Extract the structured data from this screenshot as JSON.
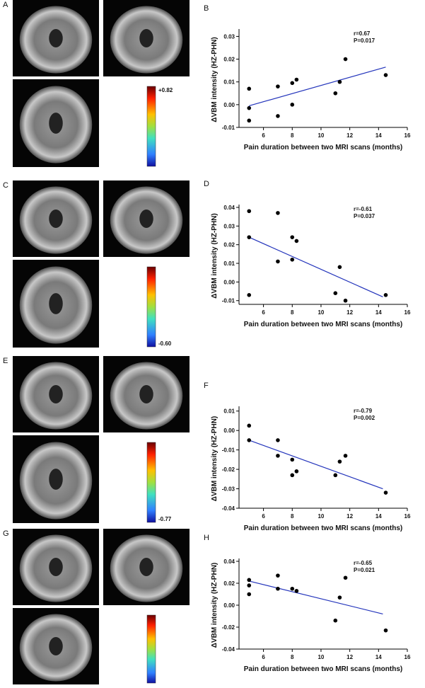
{
  "brain_panels": [
    {
      "label": "A",
      "colorbar_label": "+0.82"
    },
    {
      "label": "C",
      "colorbar_label": "-0.60"
    },
    {
      "label": "E",
      "colorbar_label": "-0.77"
    },
    {
      "label": "G"
    }
  ],
  "chart_data": [
    {
      "type": "scatter",
      "panel": "B",
      "x_label": "Pain duration between two MRI scans (months)",
      "y_label": "ΔVBM intensity (HZ-PHN)",
      "annotations": [
        "r=0.67",
        "P=0.017"
      ],
      "x": [
        5,
        5,
        5,
        7,
        7,
        8,
        8,
        8.3,
        11,
        11.3,
        11.7,
        14.5
      ],
      "y": [
        0.007,
        -0.0015,
        -0.007,
        0.008,
        -0.005,
        0.0095,
        0,
        0.011,
        0.005,
        0.01,
        0.02,
        0.013
      ],
      "color": "#000000",
      "fit_line": {
        "x": [
          5,
          14.5
        ],
        "y": [
          -0.0005,
          0.0165
        ],
        "color": "#2233bb"
      },
      "xlim": [
        4.3,
        16
      ],
      "xticks": [
        6,
        8,
        10,
        12,
        14,
        16
      ],
      "ylim": [
        -0.01,
        0.032
      ],
      "yticks": [
        -0.01,
        {
          "value": 0,
          "label": "0.00"
        },
        0.01,
        0.02,
        0.03
      ]
    },
    {
      "type": "scatter",
      "panel": "D",
      "x_label": "Pain duration between two MRI scans (months)",
      "y_label": "ΔVBM intensity (HZ-PHN)",
      "annotations": [
        "r=-0.61",
        "P=0.037"
      ],
      "x": [
        5,
        5,
        5,
        7,
        7,
        8,
        8,
        8.3,
        11,
        11.3,
        11.7,
        14.5
      ],
      "y": [
        0.038,
        0.024,
        -0.007,
        0.037,
        0.011,
        0.024,
        0.012,
        0.022,
        -0.006,
        0.008,
        -0.01,
        -0.007
      ],
      "color": "#000000",
      "fit_line": {
        "x": [
          5,
          14.3
        ],
        "y": [
          0.024,
          -0.008
        ],
        "color": "#2233bb"
      },
      "xlim": [
        4.3,
        16
      ],
      "xticks": [
        6,
        8,
        10,
        12,
        14,
        16
      ],
      "ylim": [
        -0.012,
        0.04
      ],
      "yticks": [
        -0.01,
        {
          "value": 0,
          "label": "0.00"
        },
        0.01,
        0.02,
        0.03,
        0.04
      ]
    },
    {
      "type": "scatter",
      "panel": "F",
      "x_label": "Pain duration between two MRI scans (months)",
      "y_label": "ΔVBM intensity (HZ-PHN)",
      "annotations": [
        "r=-0.79",
        "P=0.002"
      ],
      "x": [
        5,
        5,
        7,
        7,
        8,
        8,
        8.3,
        11,
        11.3,
        11.7,
        14.5
      ],
      "y": [
        0.0025,
        -0.005,
        -0.005,
        -0.013,
        -0.015,
        -0.023,
        -0.021,
        -0.023,
        -0.016,
        -0.013,
        -0.032
      ],
      "color": "#000000",
      "fit_line": {
        "x": [
          5,
          14.3
        ],
        "y": [
          -0.005,
          -0.03
        ],
        "color": "#2233bb"
      },
      "xlim": [
        4.3,
        16
      ],
      "xticks": [
        6,
        8,
        10,
        12,
        14,
        16
      ],
      "ylim": [
        -0.04,
        0.011
      ],
      "yticks": [
        -0.04,
        -0.03,
        -0.02,
        -0.01,
        {
          "value": 0,
          "label": "0.00"
        },
        0.01
      ]
    },
    {
      "type": "scatter",
      "panel": "H",
      "x_label": "Pain duration between two MRI scans (months)",
      "y_label": "ΔVBM intensity (HZ-PHN)",
      "annotations": [
        "r=-0.65",
        "P=0.021"
      ],
      "x": [
        5,
        5,
        5,
        7,
        7,
        8,
        8.3,
        11,
        11.3,
        11.7,
        14.5
      ],
      "y": [
        0.023,
        0.018,
        0.01,
        0.027,
        0.015,
        0.015,
        0.013,
        -0.014,
        0.007,
        0.025,
        -0.023
      ],
      "color": "#000000",
      "fit_line": {
        "x": [
          5,
          14.3
        ],
        "y": [
          0.022,
          -0.008
        ],
        "color": "#2233bb"
      },
      "xlim": [
        4.3,
        16
      ],
      "xticks": [
        6,
        8,
        10,
        12,
        14,
        16
      ],
      "ylim": [
        -0.04,
        0.04
      ],
      "yticks": [
        -0.04,
        -0.02,
        {
          "value": 0,
          "label": "0.00"
        },
        0.02,
        0.04
      ]
    }
  ]
}
